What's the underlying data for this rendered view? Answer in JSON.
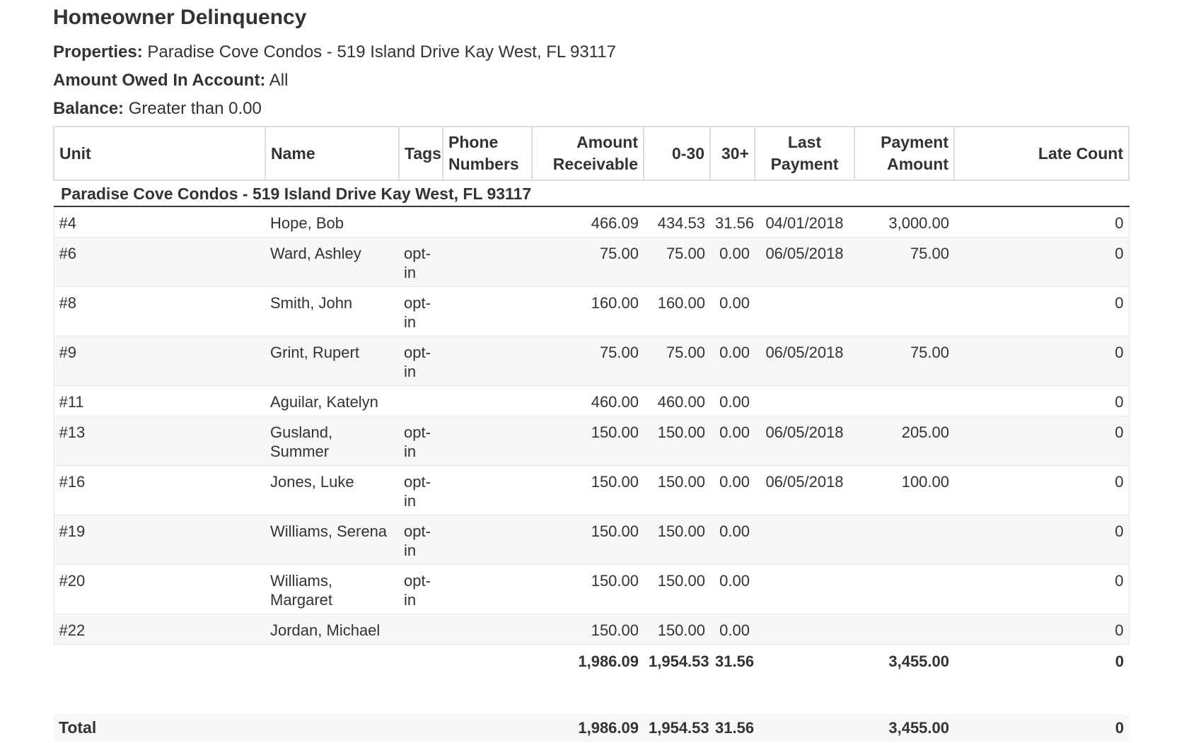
{
  "report": {
    "title": "Homeowner Delinquency",
    "filters": [
      {
        "label": "Properties:",
        "value": "Paradise Cove Condos - 519 Island Drive Kay West, FL 93117"
      },
      {
        "label": "Amount Owed In Account:",
        "value": "All"
      },
      {
        "label": "Balance:",
        "value": "Greater than 0.00"
      }
    ]
  },
  "table": {
    "columns": {
      "unit": "Unit",
      "name": "Name",
      "tags": "Tags",
      "phone": "Phone Numbers",
      "receivable": "Amount Receivable",
      "d0_30": "0-30",
      "d30": "30+",
      "last_payment": "Last Payment",
      "payment_amount": "Payment Amount",
      "late_count": "Late Count"
    },
    "group": "Paradise Cove Condos - 519 Island Drive Kay West, FL 93117",
    "rows": [
      {
        "unit": "#4",
        "name": "Hope, Bob",
        "tags": "",
        "phone": "",
        "receivable": "466.09",
        "d0_30": "434.53",
        "d30": "31.56",
        "last_payment": "04/01/2018",
        "payment_amount": "3,000.00",
        "late_count": "0"
      },
      {
        "unit": "#6",
        "name": "Ward, Ashley",
        "tags": "opt-in",
        "phone": "",
        "receivable": "75.00",
        "d0_30": "75.00",
        "d30": "0.00",
        "last_payment": "06/05/2018",
        "payment_amount": "75.00",
        "late_count": "0"
      },
      {
        "unit": "#8",
        "name": "Smith, John",
        "tags": "opt-in",
        "phone": "",
        "receivable": "160.00",
        "d0_30": "160.00",
        "d30": "0.00",
        "last_payment": "",
        "payment_amount": "",
        "late_count": "0"
      },
      {
        "unit": "#9",
        "name": "Grint, Rupert",
        "tags": "opt-in",
        "phone": "",
        "receivable": "75.00",
        "d0_30": "75.00",
        "d30": "0.00",
        "last_payment": "06/05/2018",
        "payment_amount": "75.00",
        "late_count": "0"
      },
      {
        "unit": "#11",
        "name": "Aguilar, Katelyn",
        "tags": "",
        "phone": "",
        "receivable": "460.00",
        "d0_30": "460.00",
        "d30": "0.00",
        "last_payment": "",
        "payment_amount": "",
        "late_count": "0"
      },
      {
        "unit": "#13",
        "name": "Gusland, Summer",
        "tags": "opt-in",
        "phone": "",
        "receivable": "150.00",
        "d0_30": "150.00",
        "d30": "0.00",
        "last_payment": "06/05/2018",
        "payment_amount": "205.00",
        "late_count": "0"
      },
      {
        "unit": "#16",
        "name": "Jones, Luke",
        "tags": "opt-in",
        "phone": "",
        "receivable": "150.00",
        "d0_30": "150.00",
        "d30": "0.00",
        "last_payment": "06/05/2018",
        "payment_amount": "100.00",
        "late_count": "0"
      },
      {
        "unit": "#19",
        "name": "Williams, Serena",
        "tags": "opt-in",
        "phone": "",
        "receivable": "150.00",
        "d0_30": "150.00",
        "d30": "0.00",
        "last_payment": "",
        "payment_amount": "",
        "late_count": "0"
      },
      {
        "unit": "#20",
        "name": "Williams, Margaret",
        "tags": "opt-in",
        "phone": "",
        "receivable": "150.00",
        "d0_30": "150.00",
        "d30": "0.00",
        "last_payment": "",
        "payment_amount": "",
        "late_count": "0"
      },
      {
        "unit": "#22",
        "name": "Jordan, Michael",
        "tags": "",
        "phone": "",
        "receivable": "150.00",
        "d0_30": "150.00",
        "d30": "0.00",
        "last_payment": "",
        "payment_amount": "",
        "late_count": "0"
      }
    ],
    "subtotal": {
      "receivable": "1,986.09",
      "d0_30": "1,954.53",
      "d30": "31.56",
      "payment_amount": "3,455.00",
      "late_count": "0"
    },
    "total": {
      "label": "Total",
      "receivable": "1,986.09",
      "d0_30": "1,954.53",
      "d30": "31.56",
      "payment_amount": "3,455.00",
      "late_count": "0"
    }
  }
}
